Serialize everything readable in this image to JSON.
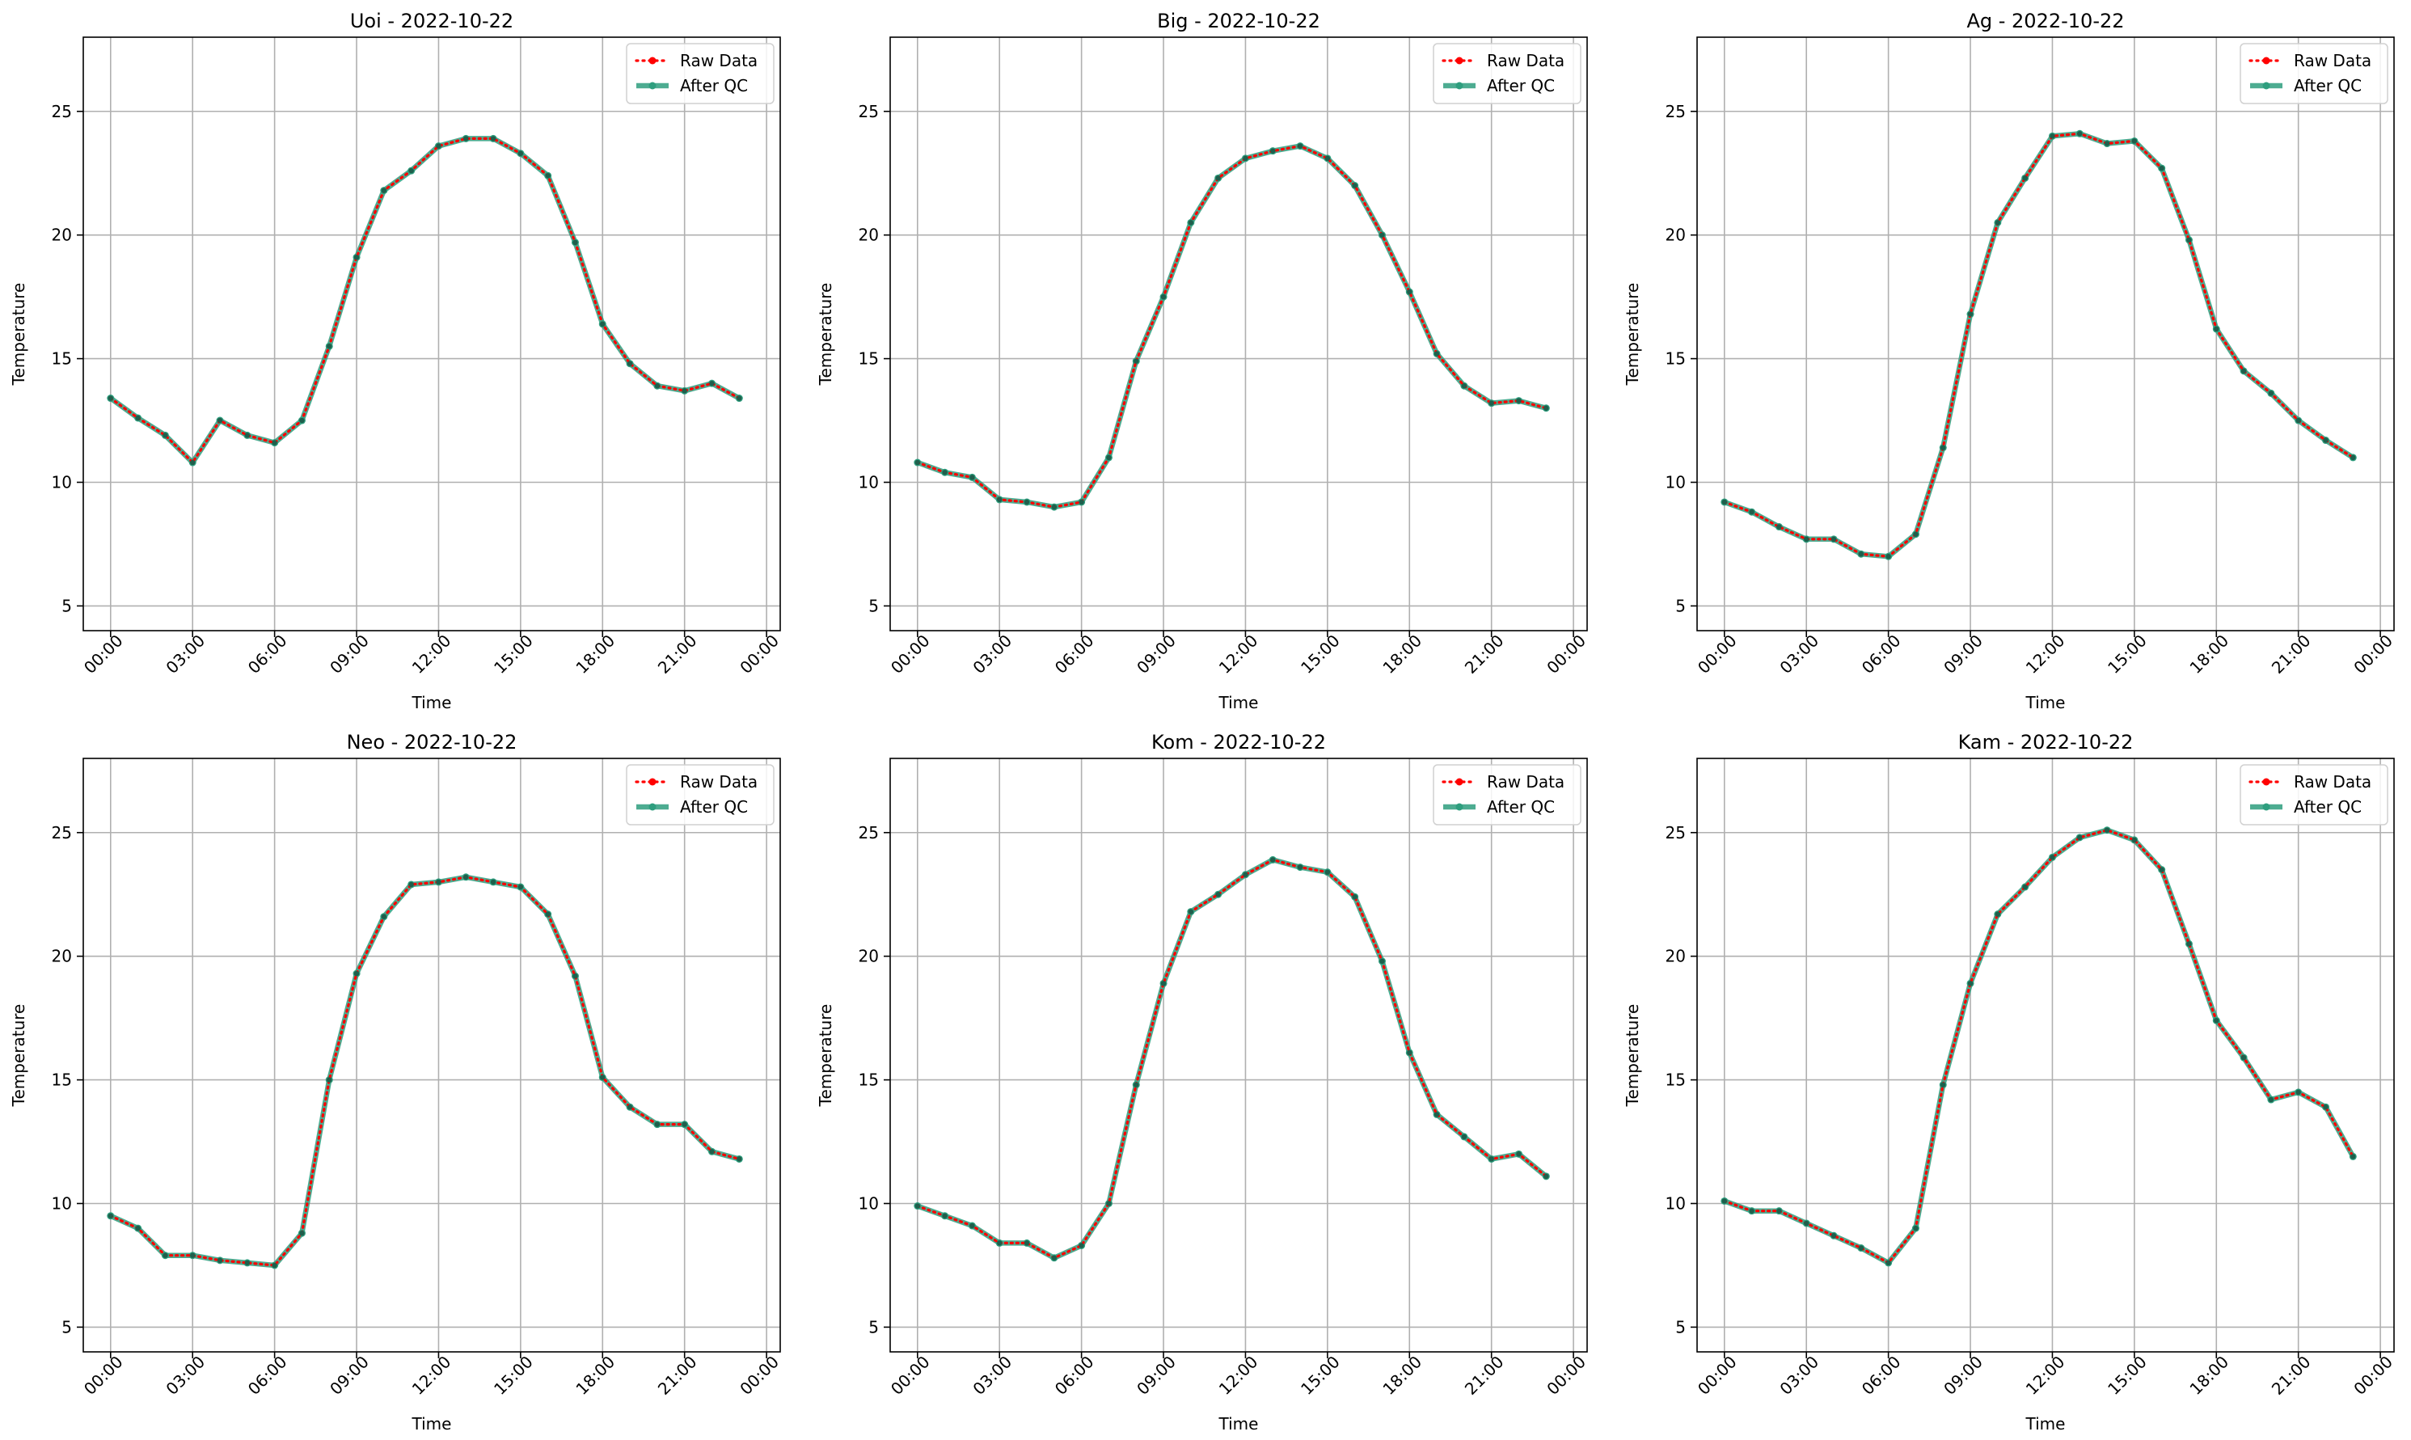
{
  "figure": {
    "legend_labels": {
      "raw": "Raw Data",
      "qc": "After QC"
    },
    "colors": {
      "raw": "#ff0000",
      "qc": "#2e9e7e",
      "grid": "#b0b0b0",
      "axis": "#000000"
    }
  },
  "chart_data": [
    {
      "type": "line",
      "title": "Uoi - 2022-10-22",
      "xlabel": "Time",
      "ylabel": "Temperature",
      "xlim": [
        "2022-10-21 23:00",
        "2022-10-23 00:30"
      ],
      "ylim": [
        4,
        28
      ],
      "xticks": [
        "00:00",
        "03:00",
        "06:00",
        "09:00",
        "12:00",
        "15:00",
        "18:00",
        "21:00",
        "00:00"
      ],
      "yticks": [
        5,
        10,
        15,
        20,
        25
      ],
      "grid": true,
      "legend": "top-right",
      "x": [
        "00:00",
        "01:00",
        "02:00",
        "03:00",
        "04:00",
        "05:00",
        "06:00",
        "07:00",
        "08:00",
        "09:00",
        "10:00",
        "11:00",
        "12:00",
        "13:00",
        "14:00",
        "15:00",
        "16:00",
        "17:00",
        "18:00",
        "19:00",
        "20:00",
        "21:00",
        "22:00",
        "23:00"
      ],
      "series": [
        {
          "name": "Raw Data",
          "values": [
            13.4,
            12.6,
            11.9,
            10.8,
            12.5,
            11.9,
            11.6,
            12.5,
            15.5,
            19.1,
            21.8,
            22.6,
            23.6,
            23.9,
            23.9,
            23.3,
            22.4,
            19.7,
            16.4,
            14.8,
            13.9,
            13.7,
            14.0,
            13.4
          ]
        },
        {
          "name": "After QC",
          "values": [
            13.4,
            12.6,
            11.9,
            10.8,
            12.5,
            11.9,
            11.6,
            12.5,
            15.5,
            19.1,
            21.8,
            22.6,
            23.6,
            23.9,
            23.9,
            23.3,
            22.4,
            19.7,
            16.4,
            14.8,
            13.9,
            13.7,
            14.0,
            13.4
          ]
        }
      ]
    },
    {
      "type": "line",
      "title": "Big - 2022-10-22",
      "xlabel": "Time",
      "ylabel": "Temperature",
      "xlim": [
        "2022-10-21 23:00",
        "2022-10-23 00:30"
      ],
      "ylim": [
        4,
        28
      ],
      "xticks": [
        "00:00",
        "03:00",
        "06:00",
        "09:00",
        "12:00",
        "15:00",
        "18:00",
        "21:00",
        "00:00"
      ],
      "yticks": [
        5,
        10,
        15,
        20,
        25
      ],
      "grid": true,
      "legend": "top-right",
      "x": [
        "00:00",
        "01:00",
        "02:00",
        "03:00",
        "04:00",
        "05:00",
        "06:00",
        "07:00",
        "08:00",
        "09:00",
        "10:00",
        "11:00",
        "12:00",
        "13:00",
        "14:00",
        "15:00",
        "16:00",
        "17:00",
        "18:00",
        "19:00",
        "20:00",
        "21:00",
        "22:00",
        "23:00"
      ],
      "series": [
        {
          "name": "Raw Data",
          "values": [
            10.8,
            10.4,
            10.2,
            9.3,
            9.2,
            9.0,
            9.2,
            11.0,
            14.9,
            17.5,
            20.5,
            22.3,
            23.1,
            23.4,
            23.6,
            23.1,
            22.0,
            20.0,
            17.7,
            15.2,
            13.9,
            13.2,
            13.3,
            13.0
          ]
        },
        {
          "name": "After QC",
          "values": [
            10.8,
            10.4,
            10.2,
            9.3,
            9.2,
            9.0,
            9.2,
            11.0,
            14.9,
            17.5,
            20.5,
            22.3,
            23.1,
            23.4,
            23.6,
            23.1,
            22.0,
            20.0,
            17.7,
            15.2,
            13.9,
            13.2,
            13.3,
            13.0
          ]
        }
      ]
    },
    {
      "type": "line",
      "title": "Ag - 2022-10-22",
      "xlabel": "Time",
      "ylabel": "Temperature",
      "xlim": [
        "2022-10-21 23:00",
        "2022-10-23 00:30"
      ],
      "ylim": [
        4,
        28
      ],
      "xticks": [
        "00:00",
        "03:00",
        "06:00",
        "09:00",
        "12:00",
        "15:00",
        "18:00",
        "21:00",
        "00:00"
      ],
      "yticks": [
        5,
        10,
        15,
        20,
        25
      ],
      "grid": true,
      "legend": "top-right",
      "x": [
        "00:00",
        "01:00",
        "02:00",
        "03:00",
        "04:00",
        "05:00",
        "06:00",
        "07:00",
        "08:00",
        "09:00",
        "10:00",
        "11:00",
        "12:00",
        "13:00",
        "14:00",
        "15:00",
        "16:00",
        "17:00",
        "18:00",
        "19:00",
        "20:00",
        "21:00",
        "22:00",
        "23:00"
      ],
      "series": [
        {
          "name": "Raw Data",
          "values": [
            9.2,
            8.8,
            8.2,
            7.7,
            7.7,
            7.1,
            7.0,
            7.9,
            11.4,
            16.8,
            20.5,
            22.3,
            24.0,
            24.1,
            23.7,
            23.8,
            22.7,
            19.8,
            16.2,
            14.5,
            13.6,
            12.5,
            11.7,
            11.0
          ]
        },
        {
          "name": "After QC",
          "values": [
            9.2,
            8.8,
            8.2,
            7.7,
            7.7,
            7.1,
            7.0,
            7.9,
            11.4,
            16.8,
            20.5,
            22.3,
            24.0,
            24.1,
            23.7,
            23.8,
            22.7,
            19.8,
            16.2,
            14.5,
            13.6,
            12.5,
            11.7,
            11.0
          ]
        }
      ]
    },
    {
      "type": "line",
      "title": "Neo - 2022-10-22",
      "xlabel": "Time",
      "ylabel": "Temperature",
      "xlim": [
        "2022-10-21 23:00",
        "2022-10-23 00:30"
      ],
      "ylim": [
        4,
        28
      ],
      "xticks": [
        "00:00",
        "03:00",
        "06:00",
        "09:00",
        "12:00",
        "15:00",
        "18:00",
        "21:00",
        "00:00"
      ],
      "yticks": [
        5,
        10,
        15,
        20,
        25
      ],
      "grid": true,
      "legend": "top-right",
      "x": [
        "00:00",
        "01:00",
        "02:00",
        "03:00",
        "04:00",
        "05:00",
        "06:00",
        "07:00",
        "08:00",
        "09:00",
        "10:00",
        "11:00",
        "12:00",
        "13:00",
        "14:00",
        "15:00",
        "16:00",
        "17:00",
        "18:00",
        "19:00",
        "20:00",
        "21:00",
        "22:00",
        "23:00"
      ],
      "series": [
        {
          "name": "Raw Data",
          "values": [
            9.5,
            9.0,
            7.9,
            7.9,
            7.7,
            7.6,
            7.5,
            8.8,
            15.0,
            19.3,
            21.6,
            22.9,
            23.0,
            23.2,
            23.0,
            22.8,
            21.7,
            19.2,
            15.1,
            13.9,
            13.2,
            13.2,
            12.1,
            11.8
          ]
        },
        {
          "name": "After QC",
          "values": [
            9.5,
            9.0,
            7.9,
            7.9,
            7.7,
            7.6,
            7.5,
            8.8,
            15.0,
            19.3,
            21.6,
            22.9,
            23.0,
            23.2,
            23.0,
            22.8,
            21.7,
            19.2,
            15.1,
            13.9,
            13.2,
            13.2,
            12.1,
            11.8
          ]
        }
      ]
    },
    {
      "type": "line",
      "title": "Kom - 2022-10-22",
      "xlabel": "Time",
      "ylabel": "Temperature",
      "xlim": [
        "2022-10-21 23:00",
        "2022-10-23 00:30"
      ],
      "ylim": [
        4,
        28
      ],
      "xticks": [
        "00:00",
        "03:00",
        "06:00",
        "09:00",
        "12:00",
        "15:00",
        "18:00",
        "21:00",
        "00:00"
      ],
      "yticks": [
        5,
        10,
        15,
        20,
        25
      ],
      "grid": true,
      "legend": "top-right",
      "x": [
        "00:00",
        "01:00",
        "02:00",
        "03:00",
        "04:00",
        "05:00",
        "06:00",
        "07:00",
        "08:00",
        "09:00",
        "10:00",
        "11:00",
        "12:00",
        "13:00",
        "14:00",
        "15:00",
        "16:00",
        "17:00",
        "18:00",
        "19:00",
        "20:00",
        "21:00",
        "22:00",
        "23:00"
      ],
      "series": [
        {
          "name": "Raw Data",
          "values": [
            9.9,
            9.5,
            9.1,
            8.4,
            8.4,
            7.8,
            8.3,
            10.0,
            14.8,
            18.9,
            21.8,
            22.5,
            23.3,
            23.9,
            23.6,
            23.4,
            22.4,
            19.8,
            16.1,
            13.6,
            12.7,
            11.8,
            12.0,
            11.1
          ]
        },
        {
          "name": "After QC",
          "values": [
            9.9,
            9.5,
            9.1,
            8.4,
            8.4,
            7.8,
            8.3,
            10.0,
            14.8,
            18.9,
            21.8,
            22.5,
            23.3,
            23.9,
            23.6,
            23.4,
            22.4,
            19.8,
            16.1,
            13.6,
            12.7,
            11.8,
            12.0,
            11.1
          ]
        }
      ]
    },
    {
      "type": "line",
      "title": "Kam - 2022-10-22",
      "xlabel": "Time",
      "ylabel": "Temperature",
      "xlim": [
        "2022-10-21 23:00",
        "2022-10-23 00:30"
      ],
      "ylim": [
        4,
        28
      ],
      "xticks": [
        "00:00",
        "03:00",
        "06:00",
        "09:00",
        "12:00",
        "15:00",
        "18:00",
        "21:00",
        "00:00"
      ],
      "yticks": [
        5,
        10,
        15,
        20,
        25
      ],
      "grid": true,
      "legend": "top-right",
      "x": [
        "00:00",
        "01:00",
        "02:00",
        "03:00",
        "04:00",
        "05:00",
        "06:00",
        "07:00",
        "08:00",
        "09:00",
        "10:00",
        "11:00",
        "12:00",
        "13:00",
        "14:00",
        "15:00",
        "16:00",
        "17:00",
        "18:00",
        "19:00",
        "20:00",
        "21:00",
        "22:00",
        "23:00"
      ],
      "series": [
        {
          "name": "Raw Data",
          "values": [
            10.1,
            9.7,
            9.7,
            9.2,
            8.7,
            8.2,
            7.6,
            9.0,
            14.8,
            18.9,
            21.7,
            22.8,
            24.0,
            24.8,
            25.1,
            24.7,
            23.5,
            20.5,
            17.4,
            15.9,
            14.2,
            14.5,
            13.9,
            11.9
          ]
        },
        {
          "name": "After QC",
          "values": [
            10.1,
            9.7,
            9.7,
            9.2,
            8.7,
            8.2,
            7.6,
            9.0,
            14.8,
            18.9,
            21.7,
            22.8,
            24.0,
            24.8,
            25.1,
            24.7,
            23.5,
            20.5,
            17.4,
            15.9,
            14.2,
            14.5,
            13.9,
            11.9
          ]
        }
      ]
    }
  ]
}
